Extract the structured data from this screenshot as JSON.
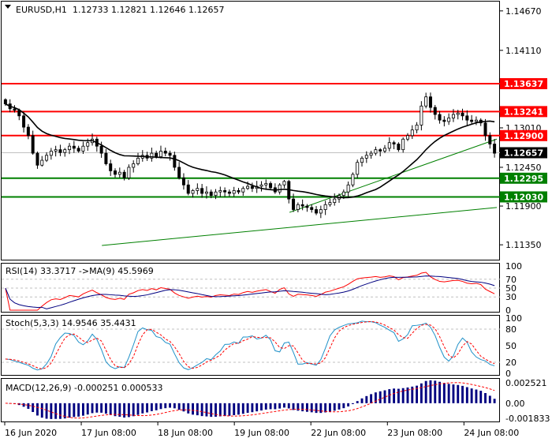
{
  "chart_data": {
    "type": "candlestick",
    "symbol_header": "EURUSD,H1",
    "ohlc_header": "1.12733 1.12821 1.12646 1.12657",
    "price_axis_ticks": [
      "1.14670",
      "1.14110",
      "1.13010",
      "1.12450",
      "1.11900",
      "1.11350"
    ],
    "ylim": [
      1.1115,
      1.1478
    ],
    "time_labels": [
      "16 Jun 2020",
      "17 Jun 08:00",
      "18 Jun 08:00",
      "19 Jun 08:00",
      "22 Jun 08:00",
      "23 Jun 08:00",
      "24 Jun 08:00"
    ],
    "closes": [
      1.1335,
      1.1328,
      1.1326,
      1.1318,
      1.1302,
      1.129,
      1.1265,
      1.1248,
      1.1255,
      1.1262,
      1.1268,
      1.127,
      1.1266,
      1.127,
      1.1275,
      1.1272,
      1.1268,
      1.1275,
      1.128,
      1.1285,
      1.1275,
      1.1265,
      1.125,
      1.124,
      1.1235,
      1.1238,
      1.123,
      1.1245,
      1.125,
      1.1258,
      1.1262,
      1.1258,
      1.1265,
      1.126,
      1.1268,
      1.1265,
      1.1262,
      1.1245,
      1.123,
      1.122,
      1.1208,
      1.1212,
      1.1215,
      1.1208,
      1.121,
      1.1205,
      1.121,
      1.1212,
      1.121,
      1.1208,
      1.1212,
      1.121,
      1.1215,
      1.1218,
      1.1215,
      1.1218,
      1.122,
      1.1222,
      1.1216,
      1.121,
      1.122,
      1.1225,
      1.12,
      1.1185,
      1.1192,
      1.119,
      1.1188,
      1.1185,
      1.118,
      1.1185,
      1.1192,
      1.1195,
      1.12,
      1.1205,
      1.121,
      1.122,
      1.1235,
      1.1252,
      1.1258,
      1.1262,
      1.1265,
      1.127,
      1.1268,
      1.1272,
      1.128,
      1.1278,
      1.127,
      1.1285,
      1.129,
      1.1298,
      1.1305,
      1.1332,
      1.1345,
      1.133,
      1.132,
      1.1312,
      1.131,
      1.1315,
      1.132,
      1.1322,
      1.1318,
      1.1312,
      1.131,
      1.1312,
      1.1308,
      1.129,
      1.1278,
      1.1265
    ],
    "horizontal_levels": [
      {
        "price": 1.13637,
        "label": "1.13637",
        "color": "#ff0000"
      },
      {
        "price": 1.13241,
        "label": "1.13241",
        "color": "#ff0000"
      },
      {
        "price": 1.129,
        "label": "1.12900",
        "color": "#ff0000"
      },
      {
        "price": 1.12295,
        "label": "1.12295",
        "color": "#008000"
      },
      {
        "price": 1.1203,
        "label": "1.12030",
        "color": "#008000"
      }
    ],
    "current_price": {
      "price": 1.12657,
      "label": "1.12657",
      "color": "#000000"
    },
    "trend_lines": [
      {
        "from": [
          0.58,
          1.1181
        ],
        "to": [
          1.0,
          1.1285
        ],
        "color": "#008000"
      },
      {
        "from": [
          0.2,
          1.1134
        ],
        "to": [
          1.0,
          1.1188
        ],
        "color": "#008000"
      }
    ],
    "moving_average_period": 20,
    "rsi": {
      "header": "RSI(14) 33.3717  ->MA(9) 45.5969",
      "levels": [
        70,
        50,
        30
      ],
      "axis_ticks": [
        "100",
        "70",
        "50",
        "30",
        "0"
      ],
      "ylim": [
        0,
        100
      ],
      "line_color": "#ff0000",
      "ma_color": "#000080"
    },
    "stochastic": {
      "header": "Stoch(5,3,3) 14.9546 35.4431",
      "levels": [
        80,
        20
      ],
      "axis_ticks": [
        "100",
        "80",
        "50",
        "20",
        "0"
      ],
      "ylim": [
        0,
        100
      ],
      "main_color": "#1e90c8",
      "signal_color": "#ff0000"
    },
    "macd": {
      "header": "MACD(12,26,9) -0.000251 0.000533",
      "axis_ticks": [
        "0.002521",
        "0.00",
        "-0.001833"
      ],
      "ylim": [
        -0.00205,
        0.0027
      ],
      "hist_color": "#000080",
      "signal_color": "#ff0000"
    }
  }
}
